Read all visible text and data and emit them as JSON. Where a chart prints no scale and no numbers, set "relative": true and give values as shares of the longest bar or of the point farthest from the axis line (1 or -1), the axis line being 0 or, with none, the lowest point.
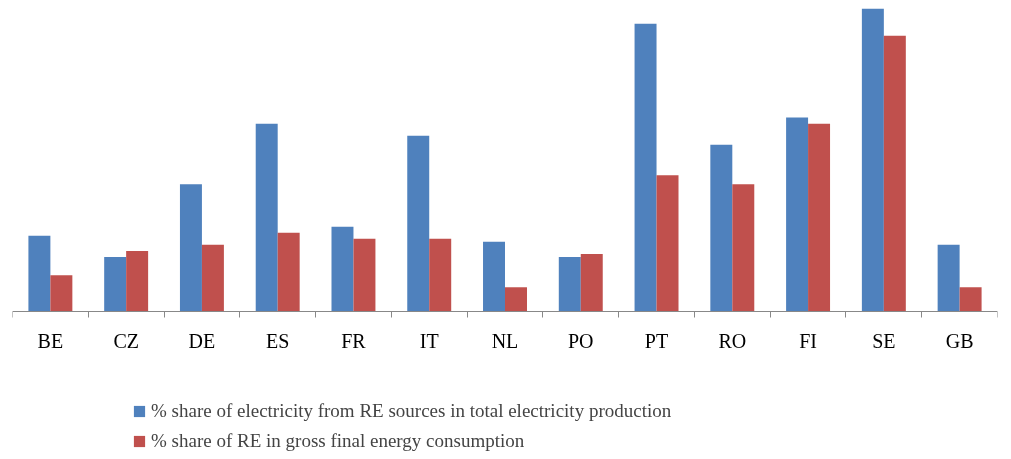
{
  "chart_data": {
    "type": "bar",
    "relative": true,
    "categories": [
      "BE",
      "CZ",
      "DE",
      "ES",
      "FR",
      "IT",
      "NL",
      "PO",
      "PT",
      "RO",
      "FI",
      "SE",
      "GB"
    ],
    "series": [
      {
        "name": "% share of electricity from RE sources in total electricity production",
        "color": "#4f81bd",
        "values": [
          0.25,
          0.18,
          0.42,
          0.62,
          0.28,
          0.58,
          0.23,
          0.18,
          0.95,
          0.55,
          0.64,
          1,
          0.22
        ]
      },
      {
        "name": "% share of RE in gross final energy consumption",
        "color": "#c0504d",
        "values": [
          0.12,
          0.2,
          0.22,
          0.26,
          0.24,
          0.24,
          0.08,
          0.19,
          0.45,
          0.42,
          0.62,
          0.91,
          0.08
        ]
      }
    ],
    "legend": "bottom",
    "grid": false
  }
}
